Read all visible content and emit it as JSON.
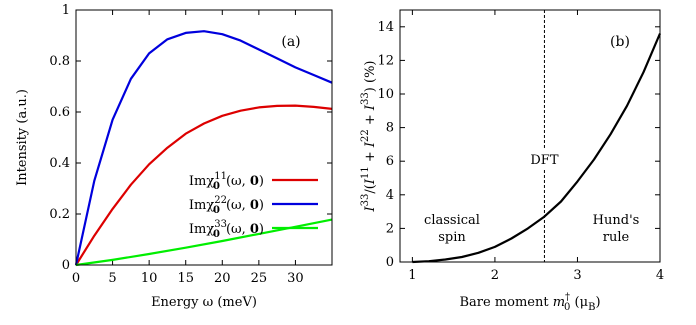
{
  "chart_data": [
    {
      "type": "line",
      "panel_label": "(a)",
      "xlabel": "Energy ω (meV)",
      "ylabel": "Intensity (a.u.)",
      "xlim": [
        0,
        35
      ],
      "ylim": [
        0,
        1
      ],
      "xticks": [
        "0",
        "5",
        "10",
        "15",
        "20",
        "25",
        "30"
      ],
      "yticks": [
        "0",
        "0.2",
        "0.4",
        "0.6",
        "0.8",
        "1"
      ],
      "legend_position": "middle-right",
      "series": [
        {
          "name": "Imχ011(ω,0)",
          "legend": {
            "base": "Imχ",
            "sub": "0",
            "sup": "11",
            "arg": "(ω, ",
            "argbold": "0",
            "close": ")"
          },
          "color": "#dd0000",
          "x": [
            0,
            2.5,
            5,
            7.5,
            10,
            12.5,
            15,
            17.5,
            20,
            22.5,
            25,
            27.5,
            30,
            32.5,
            35
          ],
          "y": [
            0,
            0.115,
            0.22,
            0.315,
            0.395,
            0.46,
            0.515,
            0.555,
            0.585,
            0.605,
            0.618,
            0.624,
            0.625,
            0.62,
            0.612
          ]
        },
        {
          "name": "Imχ022(ω,0)",
          "legend": {
            "base": "Imχ",
            "sub": "0",
            "sup": "22",
            "arg": "(ω, ",
            "argbold": "0",
            "close": ")"
          },
          "color": "#0000dd",
          "x": [
            0,
            2.5,
            5,
            7.5,
            10,
            12.5,
            15,
            17.5,
            20,
            22.5,
            25,
            27.5,
            30,
            32.5,
            35
          ],
          "y": [
            0,
            0.33,
            0.57,
            0.73,
            0.83,
            0.885,
            0.91,
            0.917,
            0.905,
            0.88,
            0.845,
            0.81,
            0.775,
            0.745,
            0.715
          ]
        },
        {
          "name": "Imχ033(ω,0)",
          "legend": {
            "base": "Imχ",
            "sub": "0",
            "sup": "33",
            "arg": "(ω, ",
            "argbold": "0",
            "close": ")"
          },
          "color": "#00ee00",
          "x": [
            0,
            5,
            10,
            15,
            20,
            25,
            30,
            35
          ],
          "y": [
            0,
            0.02,
            0.043,
            0.068,
            0.094,
            0.122,
            0.15,
            0.178
          ]
        }
      ]
    },
    {
      "type": "line",
      "panel_label": "(b)",
      "xlabel": {
        "text": "Bare moment ",
        "var": "m",
        "sub": "0",
        "sup": "†",
        "unit": " (μ",
        "unitsub": "B",
        "close": ")"
      },
      "ylabel": "I33/(I11 + I22 + I33) (%)",
      "xlim": [
        0.85,
        4
      ],
      "ylim": [
        0,
        15
      ],
      "xticks": [
        "1",
        "2",
        "3",
        "4"
      ],
      "yticks": [
        "0",
        "2",
        "4",
        "6",
        "8",
        "10",
        "12",
        "14"
      ],
      "series": [
        {
          "color": "#000000",
          "x": [
            1.0,
            1.2,
            1.4,
            1.6,
            1.8,
            2.0,
            2.2,
            2.4,
            2.6,
            2.8,
            3.0,
            3.2,
            3.4,
            3.6,
            3.8,
            4.0
          ],
          "y": [
            0.0,
            0.05,
            0.15,
            0.3,
            0.55,
            0.9,
            1.4,
            2.0,
            2.7,
            3.6,
            4.8,
            6.1,
            7.6,
            9.3,
            11.3,
            13.6
          ]
        }
      ],
      "reference_line": {
        "x": 2.6,
        "style": "dashed",
        "label": "DFT"
      },
      "annotations": [
        {
          "lines": [
            "classical",
            "spin"
          ]
        },
        {
          "lines": [
            "Hund's",
            "rule"
          ]
        }
      ]
    }
  ]
}
